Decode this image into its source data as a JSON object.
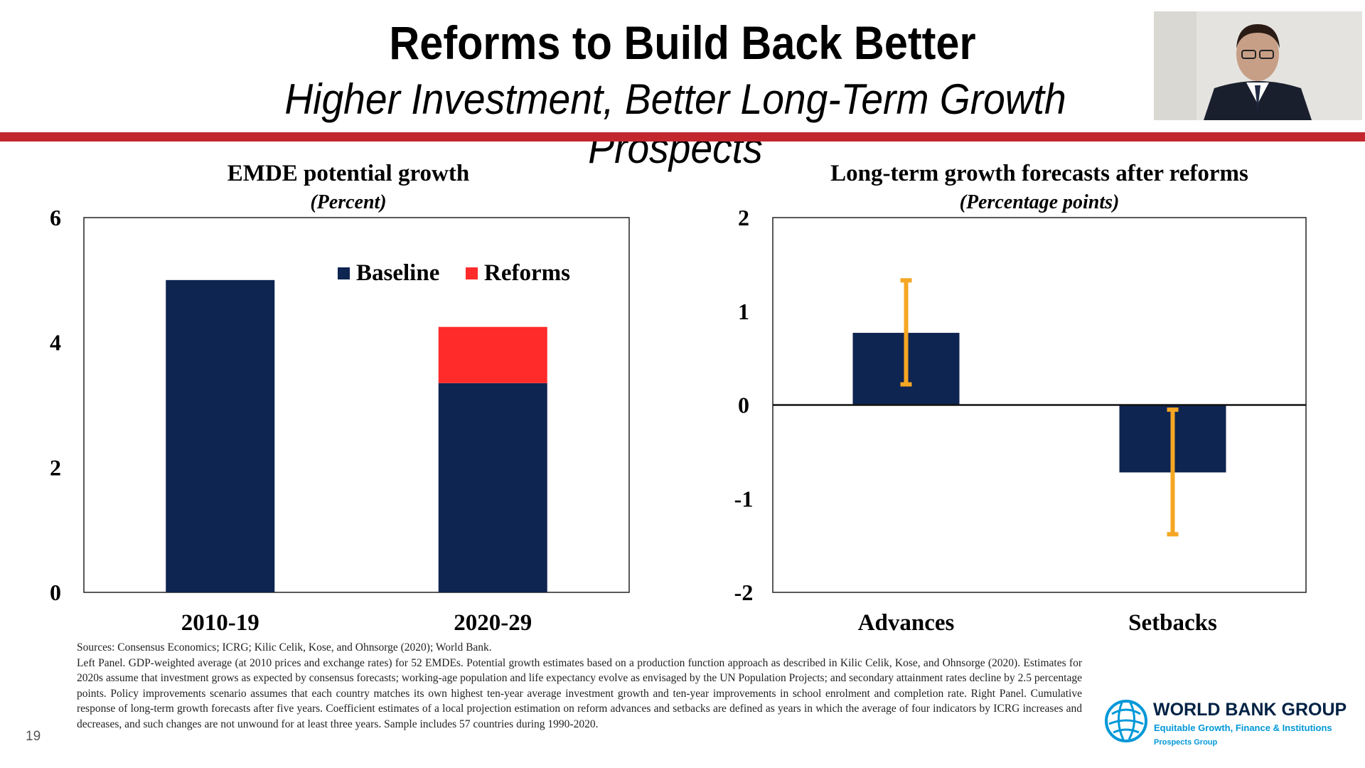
{
  "slide": {
    "title": "Reforms to Build Back Better",
    "subtitle": "Higher Investment, Better Long-Term Growth Prospects",
    "page_number": "19",
    "accent_color": "#c1272d"
  },
  "chart_data": [
    {
      "type": "bar",
      "stacked": true,
      "title": "EMDE potential growth",
      "subtitle": "(Percent)",
      "categories": [
        "2010-19",
        "2020-29"
      ],
      "series": [
        {
          "name": "Baseline",
          "values": [
            5.0,
            3.35
          ],
          "color": "#0e2451"
        },
        {
          "name": "Reforms",
          "values": [
            0,
            0.9
          ],
          "color": "#ff2b2b"
        }
      ],
      "ylim": [
        0,
        6
      ],
      "yticks": [
        "0",
        "2",
        "4",
        "6"
      ],
      "legend": "top-right"
    },
    {
      "type": "bar",
      "title": "Long-term growth forecasts after reforms",
      "subtitle": "(Percentage points)",
      "categories": [
        "Advances",
        "Setbacks"
      ],
      "values": [
        0.77,
        -0.72
      ],
      "error_bars": [
        [
          0.22,
          1.33
        ],
        [
          -1.38,
          -0.05
        ]
      ],
      "bar_color": "#0e2451",
      "error_color": "#f5a623",
      "ylim": [
        -2,
        2
      ],
      "yticks": [
        "-2",
        "-1",
        "0",
        "1",
        "2"
      ]
    }
  ],
  "footnote": {
    "sources": "Sources: Consensus Economics; ICRG; Kilic Celik, Kose, and Ohnsorge (2020); World Bank.",
    "body": "Left Panel. GDP-weighted average (at 2010 prices and exchange rates) for 52 EMDEs. Potential growth estimates based on a production function approach as described in Kilic Celik, Kose, and Ohnsorge (2020). Estimates for 2020s assume that investment grows as expected by consensus forecasts; working-age population and life expectancy evolve as envisaged by the UN Population Projects; and secondary attainment rates decline by 2.5 percentage points. Policy improvements scenario assumes that each country matches its own highest ten-year average investment growth and ten-year improvements in school enrolment and completion rate. Right Panel. Cumulative response of long-term growth forecasts after five years. Coefficient estimates of a local projection estimation on reform advances and setbacks are defined as years in which the average of four indicators by ICRG increases and decreases, and such changes are not unwound for at least three years. Sample includes 57 countries during 1990-2020."
  },
  "logo": {
    "name": "WORLD BANK GROUP",
    "line2": "Equitable Growth, Finance & Institutions",
    "line3": "Prospects Group"
  }
}
